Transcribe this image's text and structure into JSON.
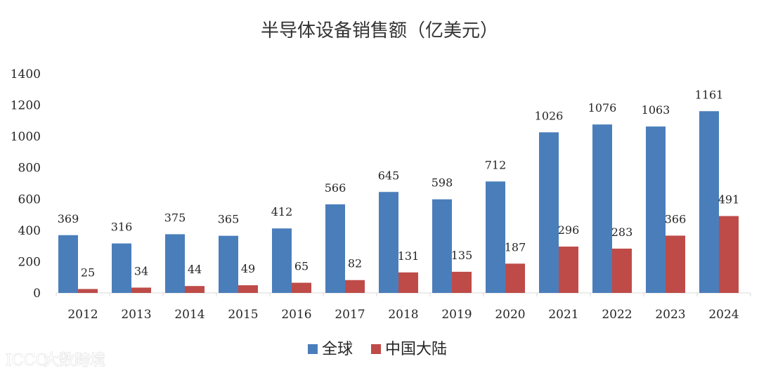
{
  "chart_data": {
    "type": "bar",
    "title": "半导体设备销售额（亿美元）",
    "categories": [
      "2012",
      "2013",
      "2014",
      "2015",
      "2016",
      "2017",
      "2018",
      "2019",
      "2020",
      "2021",
      "2022",
      "2023",
      "2024"
    ],
    "series": [
      {
        "name": "全球",
        "color": "#4a7ebb",
        "values": [
          369,
          316,
          375,
          365,
          412,
          566,
          645,
          598,
          712,
          1026,
          1076,
          1063,
          1161
        ]
      },
      {
        "name": "中国大陆",
        "color": "#be4b48",
        "values": [
          25,
          34,
          44,
          49,
          65,
          82,
          131,
          135,
          187,
          296,
          283,
          366,
          491
        ]
      }
    ],
    "ylim": [
      0,
      1400
    ],
    "yticks": [
      0,
      200,
      400,
      600,
      800,
      1000,
      1200,
      1400
    ],
    "xlabel": "",
    "ylabel": "",
    "grid": false,
    "legend_position": "bottom"
  },
  "watermark": {
    "text": "大数跨境",
    "logo_text": "ICCO"
  }
}
